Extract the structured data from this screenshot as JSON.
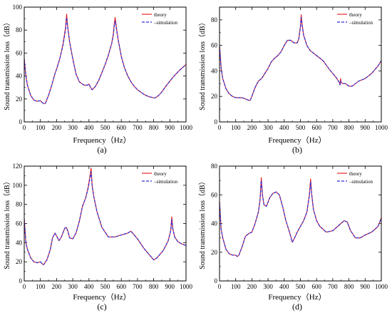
{
  "chart_data": [
    {
      "type": "line",
      "panel_label": "(a)",
      "xlabel": "Frequency（Hz）",
      "ylabel": "Sound transmission loss（dB）",
      "xlim": [
        0,
        1000
      ],
      "ylim": [
        0,
        100
      ],
      "xticks": [
        "0",
        "100",
        "200",
        "300",
        "400",
        "500",
        "600",
        "700",
        "800",
        "900",
        "1000"
      ],
      "yticks": [
        "0",
        "20",
        "40",
        "60",
        "80",
        "100"
      ],
      "legend_position": "top-right",
      "series": [
        {
          "name": "theory",
          "color": "#e8262a",
          "style": "solid",
          "x": [
            0,
            10,
            20,
            40,
            60,
            80,
            100,
            110,
            120,
            130,
            150,
            170,
            190,
            200,
            220,
            240,
            255,
            262,
            268,
            280,
            300,
            320,
            340,
            350,
            370,
            390,
            400,
            410,
            420,
            440,
            460,
            480,
            500,
            520,
            540,
            550,
            557,
            562,
            570,
            580,
            600,
            620,
            640,
            660,
            680,
            700,
            740,
            770,
            800,
            810,
            830,
            850,
            880,
            920,
            960,
            1000
          ],
          "y": [
            55,
            40,
            32,
            23,
            19,
            18,
            18.5,
            17,
            16,
            16,
            23,
            32,
            42,
            46,
            55,
            68,
            82,
            94,
            84,
            70,
            55,
            42,
            35,
            34,
            32,
            32,
            33,
            30,
            28,
            31,
            36,
            43,
            50,
            58,
            68,
            76,
            86,
            91,
            82,
            72,
            57,
            47,
            40,
            35,
            31,
            28,
            24,
            22,
            21,
            21,
            23,
            26,
            32,
            39,
            45,
            50
          ]
        },
        {
          "name": "simulation",
          "color": "#2b2ed8",
          "style": "dashed",
          "x": [
            0,
            10,
            20,
            40,
            60,
            80,
            100,
            110,
            120,
            130,
            150,
            170,
            190,
            200,
            220,
            240,
            255,
            262,
            268,
            280,
            300,
            320,
            340,
            350,
            370,
            390,
            400,
            410,
            420,
            440,
            460,
            480,
            500,
            520,
            540,
            550,
            557,
            562,
            570,
            580,
            600,
            620,
            640,
            660,
            680,
            700,
            740,
            770,
            800,
            810,
            830,
            850,
            880,
            920,
            960,
            1000
          ],
          "y": [
            55,
            40,
            32,
            23,
            19,
            18,
            18.5,
            17,
            16,
            16,
            23,
            32,
            42,
            46,
            55,
            67,
            80,
            91,
            83,
            70,
            55,
            42,
            35,
            34,
            32,
            32,
            33,
            30,
            28,
            31,
            36,
            43,
            50,
            58,
            68,
            75,
            84,
            88,
            81,
            72,
            57,
            47,
            40,
            35,
            31,
            28,
            24,
            22,
            21,
            21,
            23,
            26,
            32,
            39,
            45,
            50
          ]
        }
      ]
    },
    {
      "type": "line",
      "panel_label": "(b)",
      "xlabel": "Frequency（Hz）",
      "ylabel": "Sound transmission loss（dB）",
      "xlim": [
        0,
        1000
      ],
      "ylim": [
        0,
        90
      ],
      "xticks": [
        "0",
        "100",
        "200",
        "300",
        "400",
        "500",
        "600",
        "700",
        "800",
        "900",
        "1000"
      ],
      "yticks": [
        "0",
        "20",
        "40",
        "60",
        "80"
      ],
      "legend_position": "top-right",
      "series": [
        {
          "name": "theory",
          "color": "#e8262a",
          "style": "solid",
          "x": [
            0,
            10,
            20,
            40,
            60,
            80,
            100,
            120,
            140,
            160,
            180,
            190,
            200,
            220,
            240,
            260,
            280,
            300,
            320,
            340,
            360,
            380,
            400,
            420,
            440,
            460,
            480,
            490,
            500,
            505,
            510,
            520,
            540,
            560,
            600,
            640,
            680,
            720,
            740,
            745,
            748,
            752,
            760,
            780,
            800,
            820,
            840,
            860,
            900,
            940,
            980,
            1000
          ],
          "y": [
            60,
            42,
            34,
            26,
            22,
            20,
            19,
            19,
            19,
            18,
            17,
            17,
            20,
            27,
            32,
            34,
            38,
            42,
            47,
            50,
            52,
            55,
            60,
            64,
            64,
            62,
            62,
            65,
            75,
            84,
            77,
            68,
            60,
            56,
            52,
            48,
            41,
            35,
            31,
            29,
            34,
            31,
            30,
            30,
            28,
            28,
            30,
            32,
            34,
            38,
            44,
            48
          ]
        },
        {
          "name": "simulation",
          "color": "#2b2ed8",
          "style": "dashed",
          "x": [
            0,
            10,
            20,
            40,
            60,
            80,
            100,
            120,
            140,
            160,
            180,
            190,
            200,
            220,
            240,
            260,
            280,
            300,
            320,
            340,
            360,
            380,
            400,
            420,
            440,
            460,
            480,
            490,
            500,
            505,
            510,
            520,
            540,
            560,
            600,
            640,
            680,
            720,
            740,
            745,
            748,
            752,
            760,
            780,
            800,
            820,
            840,
            860,
            900,
            940,
            980,
            1000
          ],
          "y": [
            60,
            42,
            34,
            26,
            22,
            20,
            19,
            19,
            19,
            18,
            17,
            17,
            20,
            27,
            32,
            34,
            38,
            42,
            47,
            50,
            52,
            55,
            60,
            64,
            64,
            62,
            62,
            65,
            74,
            82,
            76,
            68,
            60,
            56,
            52,
            48,
            41,
            35,
            31,
            29,
            32,
            31,
            30,
            30,
            28,
            28,
            30,
            32,
            34,
            38,
            44,
            48
          ]
        }
      ]
    },
    {
      "type": "line",
      "panel_label": "(c)",
      "xlabel": "Frequency（Hz）",
      "ylabel": "Sound transmission loss（dB）",
      "xlim": [
        0,
        1000
      ],
      "ylim": [
        0,
        120
      ],
      "xticks": [
        "0",
        "100",
        "200",
        "300",
        "400",
        "500",
        "600",
        "700",
        "800",
        "900",
        "1000"
      ],
      "yticks": [
        "0",
        "20",
        "40",
        "60",
        "80",
        "100",
        "120"
      ],
      "legend_position": "top-right",
      "series": [
        {
          "name": "theory",
          "color": "#e8262a",
          "style": "solid",
          "x": [
            0,
            10,
            20,
            40,
            60,
            80,
            100,
            110,
            120,
            140,
            160,
            175,
            190,
            200,
            215,
            230,
            250,
            260,
            270,
            280,
            300,
            320,
            340,
            360,
            380,
            395,
            405,
            413,
            420,
            430,
            450,
            480,
            520,
            560,
            600,
            640,
            660,
            700,
            740,
            780,
            800,
            820,
            860,
            890,
            905,
            912,
            918,
            930,
            950,
            970,
            1000
          ],
          "y": [
            65,
            40,
            33,
            24,
            20,
            19,
            20,
            18,
            17,
            22,
            32,
            45,
            50,
            47,
            42,
            46,
            55,
            56,
            52,
            45,
            44,
            50,
            62,
            78,
            87,
            98,
            108,
            118,
            100,
            88,
            72,
            56,
            46,
            46,
            48,
            50,
            52,
            44,
            34,
            26,
            22,
            24,
            32,
            42,
            52,
            67,
            55,
            46,
            41,
            39,
            37
          ]
        },
        {
          "name": "simulation",
          "color": "#2b2ed8",
          "style": "dashed",
          "x": [
            0,
            10,
            20,
            40,
            60,
            80,
            100,
            110,
            120,
            140,
            160,
            175,
            190,
            200,
            215,
            230,
            250,
            260,
            270,
            280,
            300,
            320,
            340,
            360,
            380,
            395,
            405,
            413,
            420,
            430,
            450,
            480,
            520,
            560,
            600,
            640,
            660,
            700,
            740,
            780,
            800,
            820,
            860,
            890,
            905,
            912,
            918,
            930,
            950,
            970,
            1000
          ],
          "y": [
            65,
            40,
            33,
            24,
            20,
            19,
            20,
            18,
            17,
            22,
            32,
            45,
            50,
            47,
            42,
            46,
            55,
            56,
            52,
            45,
            44,
            50,
            62,
            78,
            87,
            97,
            106,
            114,
            99,
            88,
            72,
            56,
            46,
            46,
            48,
            50,
            52,
            44,
            34,
            26,
            22,
            24,
            32,
            42,
            52,
            64,
            54,
            46,
            41,
            39,
            37
          ]
        }
      ]
    },
    {
      "type": "line",
      "panel_label": "(d)",
      "xlabel": "Frequency（Hz）",
      "ylabel": "Sound transmission loss（dB）",
      "xlim": [
        0,
        1000
      ],
      "ylim": [
        0,
        80
      ],
      "xticks": [
        "0",
        "100",
        "200",
        "300",
        "400",
        "500",
        "600",
        "700",
        "800",
        "900",
        "1000"
      ],
      "yticks": [
        "0",
        "20",
        "40",
        "60",
        "80"
      ],
      "legend_position": "top-right",
      "series": [
        {
          "name": "theory",
          "color": "#e8262a",
          "style": "solid",
          "x": [
            0,
            10,
            20,
            40,
            60,
            80,
            100,
            110,
            120,
            140,
            160,
            180,
            200,
            220,
            240,
            250,
            258,
            265,
            275,
            290,
            310,
            330,
            350,
            370,
            390,
            410,
            430,
            440,
            450,
            460,
            480,
            500,
            520,
            540,
            555,
            563,
            570,
            580,
            600,
            620,
            660,
            700,
            740,
            770,
            790,
            810,
            840,
            870,
            900,
            940,
            980,
            1000
          ],
          "y": [
            55,
            36,
            30,
            22,
            19,
            18,
            18,
            17,
            18,
            24,
            31,
            33,
            34,
            40,
            48,
            56,
            72,
            60,
            53,
            52,
            58,
            61,
            62,
            60,
            52,
            42,
            35,
            31,
            27,
            29,
            34,
            38,
            42,
            48,
            60,
            71,
            60,
            50,
            42,
            38,
            34,
            35,
            39,
            42,
            41,
            35,
            30,
            30,
            32,
            34,
            38,
            44
          ]
        },
        {
          "name": "simulation",
          "color": "#2b2ed8",
          "style": "dashed",
          "x": [
            0,
            10,
            20,
            40,
            60,
            80,
            100,
            110,
            120,
            140,
            160,
            180,
            200,
            220,
            240,
            250,
            258,
            265,
            275,
            290,
            310,
            330,
            350,
            370,
            390,
            410,
            430,
            440,
            450,
            460,
            480,
            500,
            520,
            540,
            555,
            563,
            570,
            580,
            600,
            620,
            660,
            700,
            740,
            770,
            790,
            810,
            840,
            870,
            900,
            940,
            980,
            1000
          ],
          "y": [
            55,
            36,
            30,
            22,
            19,
            18,
            18,
            17,
            18,
            24,
            31,
            33,
            34,
            40,
            48,
            56,
            70,
            60,
            53,
            52,
            58,
            61,
            62,
            60,
            52,
            42,
            35,
            31,
            27,
            29,
            34,
            38,
            42,
            48,
            59,
            69,
            60,
            50,
            42,
            38,
            34,
            35,
            39,
            42,
            41,
            35,
            30,
            30,
            32,
            34,
            38,
            44
          ]
        }
      ]
    }
  ]
}
